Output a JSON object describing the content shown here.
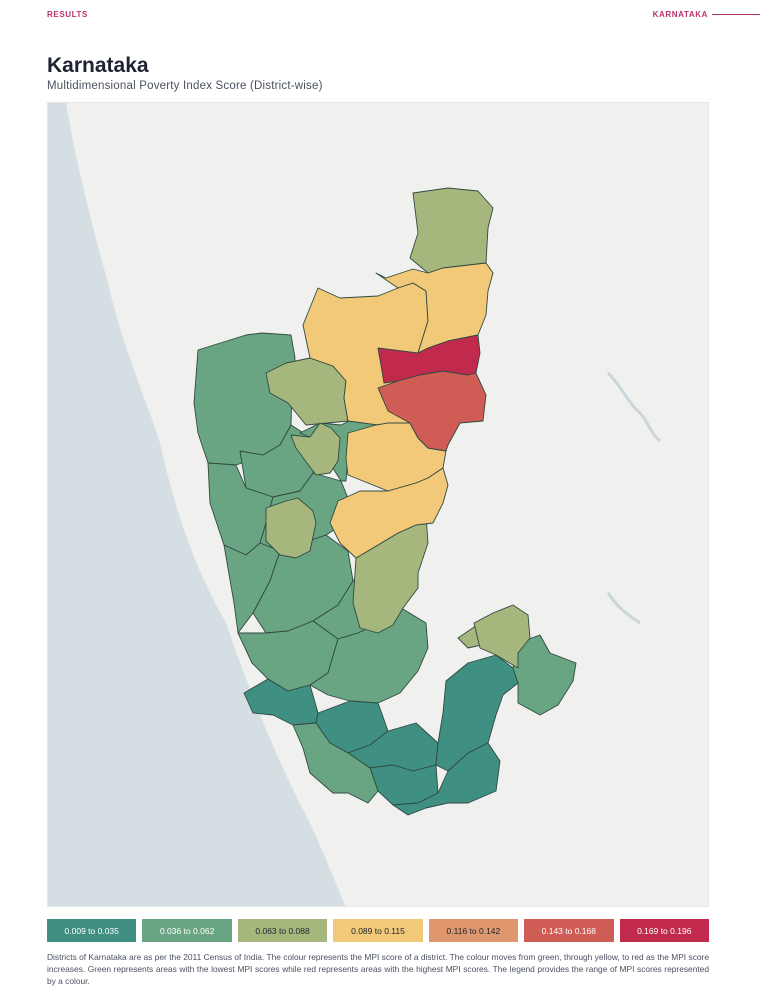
{
  "header": {
    "section_left": "RESULTS",
    "section_right": "KARNATAKA"
  },
  "title": "Karnataka",
  "subtitle": "Multidimensional Poverty Index Score (District-wise)",
  "legend": [
    {
      "label": "0.009 to 0.035",
      "color": "#3f8f82",
      "text_color": "#ffffff"
    },
    {
      "label": "0.036 to 0.062",
      "color": "#6aa583",
      "text_color": "#ffffff"
    },
    {
      "label": "0.063 to 0.088",
      "color": "#a6b77e",
      "text_color": "#1d2430"
    },
    {
      "label": "0.089 to 0.115",
      "color": "#f1c979",
      "text_color": "#1d2430"
    },
    {
      "label": "0.116 to 0.142",
      "color": "#e1976d",
      "text_color": "#1d2430"
    },
    {
      "label": "0.143 to 0.168",
      "color": "#cf5c55",
      "text_color": "#ffffff"
    },
    {
      "label": "0.169 to 0.196",
      "color": "#c12a4c",
      "text_color": "#ffffff"
    }
  ],
  "caption": "Districts of Karnataka are as per the 2011 Census of India. The colour represents the MPI score of a district. The colour moves from green, through yellow, to red as the MPI score increases. Green represents areas with the lowest MPI scores while red represents areas with the highest MPI scores. The legend provides the range of MPI scores represented by a colour.",
  "map": {
    "sea_color": "#d5dfe3",
    "land_color": "#f0f0ef",
    "border_color": "#2f4a40",
    "districts": [
      {
        "category": 1
      },
      {
        "category": 1
      },
      {
        "category": 1
      },
      {
        "category": 1
      },
      {
        "category": 1
      },
      {
        "category": 1
      },
      {
        "category": 1
      },
      {
        "category": 1
      },
      {
        "category": 1
      },
      {
        "category": 1
      },
      {
        "category": 0
      },
      {
        "category": 0
      },
      {
        "category": 0
      },
      {
        "category": 0
      },
      {
        "category": 0
      },
      {
        "category": 0
      },
      {
        "category": 1
      },
      {
        "category": 1
      },
      {
        "category": 2
      },
      {
        "category": 2
      },
      {
        "category": 2
      },
      {
        "category": 2
      },
      {
        "category": 2
      },
      {
        "category": 2
      },
      {
        "category": 2
      },
      {
        "category": 3
      },
      {
        "category": 3
      },
      {
        "category": 3
      },
      {
        "category": 3
      },
      {
        "category": 6
      },
      {
        "category": 5
      }
    ]
  }
}
